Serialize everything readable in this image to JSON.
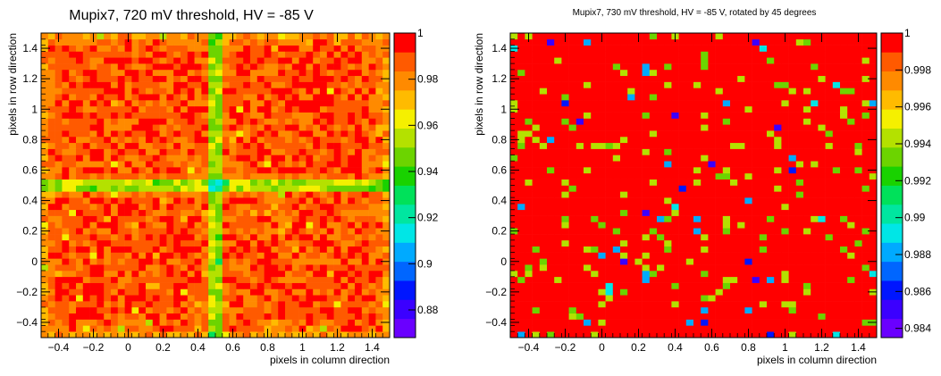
{
  "chart_data": [
    {
      "type": "heatmap",
      "title": "Mupix7, 720 mV threshold, HV = -85 V",
      "xlabel": "pixels in column direction",
      "ylabel": "pixels in row direction",
      "xlim": [
        -0.5,
        1.5
      ],
      "ylim": [
        -0.5,
        1.5
      ],
      "xticks": [
        "−0.4",
        "−0.2",
        "0",
        "0.2",
        "0.4",
        "0.6",
        "0.8",
        "1",
        "1.2",
        "1.4"
      ],
      "xtick_values": [
        -0.4,
        -0.2,
        0,
        0.2,
        0.4,
        0.6,
        0.8,
        1,
        1.2,
        1.4
      ],
      "yticks": [
        "−0.4",
        "−0.2",
        "0",
        "0.2",
        "0.4",
        "0.6",
        "0.8",
        "1",
        "1.2",
        "1.4"
      ],
      "ytick_values": [
        -0.4,
        -0.2,
        0,
        0.2,
        0.4,
        0.6,
        0.8,
        1,
        1.2,
        1.4
      ],
      "zlim": [
        0.868,
        1.0
      ],
      "zticks": [
        "0.88",
        "0.9",
        "0.92",
        "0.94",
        "0.96",
        "0.98",
        "1"
      ],
      "ztick_values": [
        0.88,
        0.9,
        0.92,
        0.94,
        0.96,
        0.98,
        1.0
      ],
      "bins": [
        50,
        50
      ],
      "pattern": "cross",
      "cross_center": [
        0.5,
        0.5
      ],
      "seed": 7
    },
    {
      "type": "heatmap",
      "title": "Mupix7, 730 mV threshold, HV = -85 V, rotated by 45 degrees",
      "xlabel": "pixels in column direction",
      "ylabel": "pixels in row direction",
      "xlim": [
        -0.5,
        1.5
      ],
      "ylim": [
        -0.5,
        1.5
      ],
      "xticks": [
        "−0.4",
        "−0.2",
        "0",
        "0.2",
        "0.4",
        "0.6",
        "0.8",
        "1",
        "1.2",
        "1.4"
      ],
      "xtick_values": [
        -0.4,
        -0.2,
        0,
        0.2,
        0.4,
        0.6,
        0.8,
        1,
        1.2,
        1.4
      ],
      "yticks": [
        "−0.4",
        "−0.2",
        "0",
        "0.2",
        "0.4",
        "0.6",
        "0.8",
        "1",
        "1.2",
        "1.4"
      ],
      "ytick_values": [
        -0.4,
        -0.2,
        0,
        0.2,
        0.4,
        0.6,
        0.8,
        1,
        1.2,
        1.4
      ],
      "zlim": [
        0.9835,
        1.0
      ],
      "zticks": [
        "0.984",
        "0.986",
        "0.988",
        "0.99",
        "0.992",
        "0.994",
        "0.996",
        "0.998",
        "1"
      ],
      "ztick_values": [
        0.984,
        0.986,
        0.988,
        0.99,
        0.992,
        0.994,
        0.996,
        0.998,
        1.0
      ],
      "bins": [
        50,
        50
      ],
      "pattern": "sparse",
      "seed": 31
    }
  ],
  "palette": [
    "#6a00ff",
    "#3b00ff",
    "#0016ff",
    "#0066ff",
    "#00aaff",
    "#00e6e6",
    "#00e6a0",
    "#00e15a",
    "#19d200",
    "#6cd400",
    "#b4e100",
    "#f5f000",
    "#ffbb00",
    "#ff8a00",
    "#ff5a00",
    "#ff0000"
  ]
}
